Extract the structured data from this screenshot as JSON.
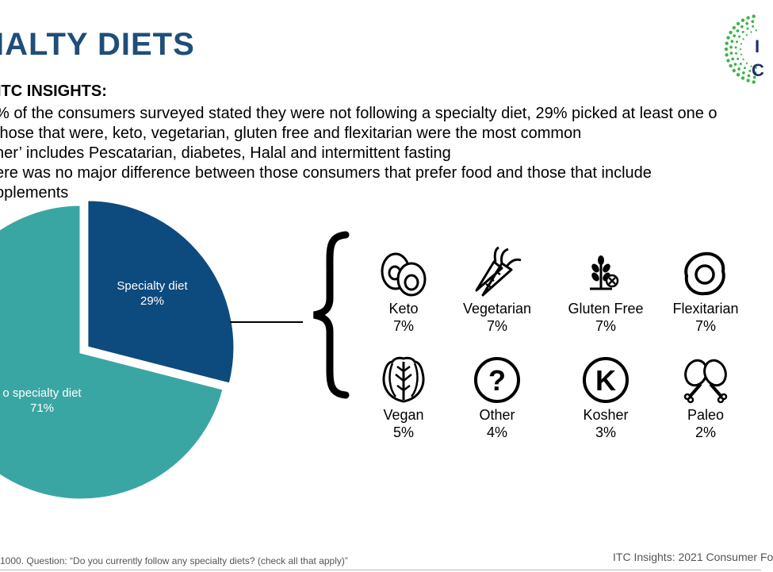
{
  "page": {
    "title": "IALTY DIETS",
    "insights_heading": "ITC INSIGHTS:",
    "insights": [
      "% of the consumers surveyed stated they were not following a specialty diet, 29% picked at least one o",
      " those that were, keto, vegetarian, gluten free and flexitarian were the most common",
      "her’ includes Pescatarian, diabetes, Halal and intermittent fasting",
      "ere was no major difference between those consumers that prefer food and those that include",
      "pplements"
    ],
    "footnote": "1000. Question: “Do you currently follow any specialty diets? (check all that apply)”",
    "footer_right": "ITC Insights: 2021 Consumer Fo"
  },
  "colors": {
    "title": "#1f4e79",
    "specialty": "#0d4a7e",
    "no_specialty": "#3aa6a4",
    "logo_green": "#3cb54a",
    "logo_navy": "#1f2f6b"
  },
  "chart_data": {
    "type": "pie",
    "slices": [
      {
        "label": "Specialty diet",
        "pct_label": "29%",
        "value": 29
      },
      {
        "label": "o specialty diet",
        "pct_label": "71%",
        "value": 71
      }
    ]
  },
  "diets": [
    {
      "name": "Keto",
      "pct": "7%",
      "icon": "eggs-icon"
    },
    {
      "name": "Vegetarian",
      "pct": "7%",
      "icon": "carrot-icon"
    },
    {
      "name": "Gluten Free",
      "pct": "7%",
      "icon": "wheat-icon"
    },
    {
      "name": "Flexitarian",
      "pct": "7%",
      "icon": "fried-egg-icon"
    },
    {
      "name": "Vegan",
      "pct": "5%",
      "icon": "spinach-icon"
    },
    {
      "name": "Other",
      "pct": "4%",
      "icon": "question-icon"
    },
    {
      "name": "Kosher",
      "pct": "3%",
      "icon": "kosher-icon"
    },
    {
      "name": "Paleo",
      "pct": "2%",
      "icon": "drumstick-icon"
    }
  ],
  "logo_text": "I\nC"
}
